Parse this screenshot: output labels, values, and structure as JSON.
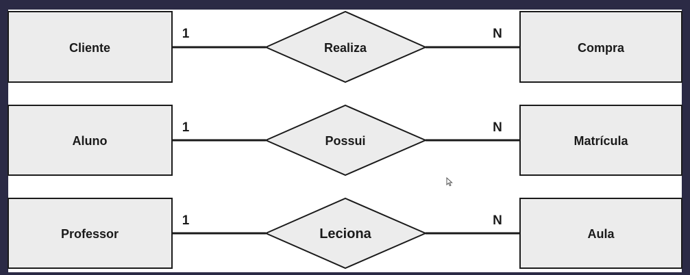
{
  "colors": {
    "frame": "#2b2a45",
    "canvas": "#ffffff",
    "shape_fill": "#ececec",
    "stroke": "#1a1a1a",
    "text": "#1a1a1a"
  },
  "relationships": [
    {
      "entity_left": "Cliente",
      "relation": "Realiza",
      "entity_right": "Compra",
      "card_left": "1",
      "card_right": "N"
    },
    {
      "entity_left": "Aluno",
      "relation": "Possui",
      "entity_right": "Matrícula",
      "card_left": "1",
      "card_right": "N"
    },
    {
      "entity_left": "Professor",
      "relation": "Leciona",
      "entity_right": "Aula",
      "card_left": "1",
      "card_right": "N"
    }
  ]
}
